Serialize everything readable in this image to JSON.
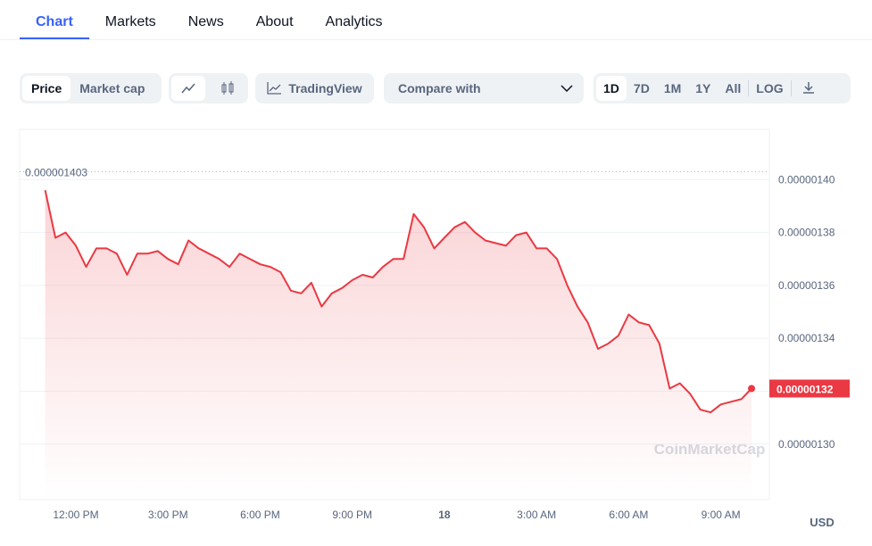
{
  "tabs": [
    "Chart",
    "Markets",
    "News",
    "About",
    "Analytics"
  ],
  "toolbar": {
    "price": "Price",
    "market_cap": "Market cap",
    "tradingview": "TradingView",
    "compare": "Compare with",
    "ranges": [
      "1D",
      "7D",
      "1M",
      "1Y",
      "All"
    ],
    "log": "LOG"
  },
  "chart_data": {
    "type": "line",
    "color": "#ea3943",
    "currency": "USD",
    "watermark": "CoinMarketCap",
    "max_label": {
      "value": 1.403e-06,
      "label": "0.000001403"
    },
    "categories": [
      null,
      null,
      null,
      "12:00 PM",
      null,
      null,
      null,
      null,
      null,
      null,
      null,
      null,
      "3:00 PM",
      null,
      null,
      null,
      null,
      null,
      null,
      null,
      null,
      "6:00 PM",
      null,
      null,
      null,
      null,
      null,
      null,
      null,
      null,
      "9:00 PM",
      null,
      null,
      null,
      null,
      null,
      null,
      null,
      null,
      "18",
      null,
      null,
      null,
      null,
      null,
      null,
      null,
      null,
      "3:00 AM",
      null,
      null,
      null,
      null,
      null,
      null,
      null,
      null,
      "6:00 AM",
      null,
      null,
      null,
      null,
      null,
      null,
      null,
      null,
      "9:00 AM",
      null,
      null,
      null
    ],
    "values": [
      1.396e-06,
      1.378e-06,
      1.38e-06,
      1.375e-06,
      1.367e-06,
      1.374e-06,
      1.374e-06,
      1.372e-06,
      1.364e-06,
      1.372e-06,
      1.372e-06,
      1.373e-06,
      1.37e-06,
      1.368e-06,
      1.377e-06,
      1.374e-06,
      1.372e-06,
      1.37e-06,
      1.367e-06,
      1.372e-06,
      1.37e-06,
      1.368e-06,
      1.367e-06,
      1.365e-06,
      1.358e-06,
      1.357e-06,
      1.361e-06,
      1.352e-06,
      1.357e-06,
      1.359e-06,
      1.362e-06,
      1.364e-06,
      1.363e-06,
      1.367e-06,
      1.37e-06,
      1.37e-06,
      1.387e-06,
      1.382e-06,
      1.374e-06,
      1.378e-06,
      1.382e-06,
      1.384e-06,
      1.38e-06,
      1.377e-06,
      1.376e-06,
      1.375e-06,
      1.379e-06,
      1.38e-06,
      1.374e-06,
      1.374e-06,
      1.37e-06,
      1.36e-06,
      1.352e-06,
      1.346e-06,
      1.336e-06,
      1.338e-06,
      1.341e-06,
      1.349e-06,
      1.346e-06,
      1.345e-06,
      1.338e-06,
      1.321e-06,
      1.323e-06,
      1.319e-06,
      1.313e-06,
      1.312e-06,
      1.315e-06,
      1.316e-06,
      1.317e-06,
      1.321e-06
    ],
    "value_labels": [
      null,
      null,
      null,
      null,
      null,
      null,
      null,
      null,
      null,
      null,
      null,
      null,
      null,
      null,
      null,
      null,
      null,
      null,
      null,
      null,
      null,
      null,
      null,
      null,
      null,
      null,
      null,
      null,
      null,
      null,
      null,
      null,
      null,
      null,
      null,
      null,
      null,
      null,
      null,
      null,
      null,
      null,
      null,
      null,
      null,
      null,
      null,
      null,
      null,
      null,
      null,
      null,
      null,
      null,
      null,
      null,
      null,
      null,
      null,
      null,
      null,
      null,
      null,
      null,
      null,
      null,
      null,
      null,
      null,
      "0.00000132"
    ],
    "ylim": [
      1.279e-06,
      1.419e-06
    ],
    "yticks": [
      {
        "value": 1.4e-06,
        "label": "0.00000140"
      },
      {
        "value": 1.38e-06,
        "label": "0.00000138"
      },
      {
        "value": 1.36e-06,
        "label": "0.00000136"
      },
      {
        "value": 1.34e-06,
        "label": "0.00000134"
      },
      {
        "value": 1.32e-06,
        "label": "0.00000132"
      },
      {
        "value": 1.3e-06,
        "label": "0.00000130"
      }
    ],
    "grid": true
  }
}
